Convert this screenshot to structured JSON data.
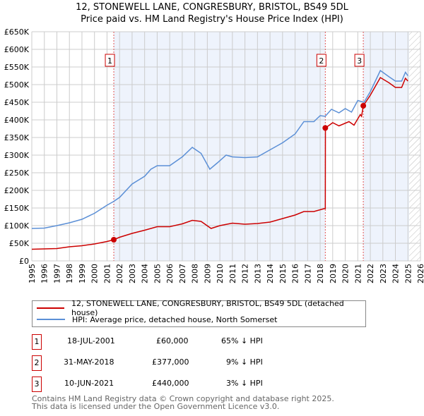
{
  "title": "12, STONEWELL LANE, CONGRESBURY, BRISTOL, BS49 5DL",
  "subtitle": "Price paid vs. HM Land Registry's House Price Index (HPI)",
  "chart_data": {
    "type": "line",
    "xlim": [
      1995,
      2026
    ],
    "ylim": [
      0,
      650000
    ],
    "x_ticks": [
      "1995",
      "1996",
      "1997",
      "1998",
      "1999",
      "2000",
      "2001",
      "2002",
      "2003",
      "2004",
      "2005",
      "2006",
      "2007",
      "2008",
      "2009",
      "2010",
      "2011",
      "2012",
      "2013",
      "2014",
      "2015",
      "2016",
      "2017",
      "2018",
      "2019",
      "2020",
      "2021",
      "2022",
      "2023",
      "2024",
      "2025",
      "2026"
    ],
    "y_ticks": [
      {
        "v": 0,
        "l": "£0"
      },
      {
        "v": 50000,
        "l": "£50K"
      },
      {
        "v": 100000,
        "l": "£100K"
      },
      {
        "v": 150000,
        "l": "£150K"
      },
      {
        "v": 200000,
        "l": "£200K"
      },
      {
        "v": 250000,
        "l": "£250K"
      },
      {
        "v": 300000,
        "l": "£300K"
      },
      {
        "v": 350000,
        "l": "£350K"
      },
      {
        "v": 400000,
        "l": "£400K"
      },
      {
        "v": 450000,
        "l": "£450K"
      },
      {
        "v": 500000,
        "l": "£500K"
      },
      {
        "v": 550000,
        "l": "£550K"
      },
      {
        "v": 600000,
        "l": "£600K"
      },
      {
        "v": 650000,
        "l": "£650K"
      }
    ],
    "series": [
      {
        "name": "12, STONEWELL LANE, CONGRESBURY, BRISTOL, BS49 5DL (detached house)",
        "color": "#cc0000",
        "x": [
          1995,
          1997,
          1998,
          1999,
          2000,
          2001,
          2001.54,
          2002,
          2003,
          2004,
          2005,
          2006,
          2007,
          2007.8,
          2008.5,
          2009.3,
          2010,
          2011,
          2012,
          2013,
          2014,
          2015,
          2016,
          2016.7,
          2017.5,
          2018.3,
          2018.41,
          2018.42,
          2019,
          2019.5,
          2020.3,
          2020.7,
          2021.2,
          2021.3,
          2021.44,
          2022,
          2022.8,
          2023.5,
          2024,
          2024.5,
          2024.8,
          2025
        ],
        "y": [
          33000,
          35000,
          40000,
          43000,
          48000,
          55000,
          60000,
          67000,
          78000,
          87000,
          97000,
          97000,
          105000,
          115000,
          112000,
          92000,
          100000,
          107000,
          104000,
          106000,
          110000,
          120000,
          130000,
          140000,
          140000,
          148000,
          148000,
          377000,
          392000,
          383000,
          395000,
          385000,
          415000,
          410000,
          440000,
          470000,
          520000,
          505000,
          492000,
          492000,
          518000,
          510000
        ]
      },
      {
        "name": "HPI: Average price, detached house, North Somerset",
        "color": "#5b8fd6",
        "x": [
          1995,
          1996,
          1997,
          1998,
          1999,
          2000,
          2001,
          2001.5,
          2002,
          2003,
          2004,
          2004.5,
          2005,
          2006,
          2007,
          2007.8,
          2008.5,
          2009.2,
          2009.8,
          2010.5,
          2011,
          2012,
          2013,
          2014,
          2015,
          2016,
          2016.7,
          2017.5,
          2018,
          2018.4,
          2018.9,
          2019.5,
          2020,
          2020.5,
          2021,
          2021.5,
          2022,
          2022.8,
          2023.5,
          2024,
          2024.5,
          2024.8,
          2025
        ],
        "y": [
          92000,
          93000,
          100000,
          108000,
          118000,
          135000,
          158000,
          168000,
          180000,
          218000,
          240000,
          260000,
          270000,
          270000,
          295000,
          322000,
          305000,
          260000,
          278000,
          300000,
          295000,
          293000,
          295000,
          315000,
          335000,
          360000,
          395000,
          395000,
          412000,
          410000,
          430000,
          420000,
          432000,
          422000,
          455000,
          450000,
          480000,
          540000,
          522000,
          510000,
          510000,
          535000,
          525000
        ]
      }
    ],
    "sales": [
      {
        "n": "1",
        "x": 2001.54,
        "y": 60000
      },
      {
        "n": "2",
        "x": 2018.41,
        "y": 377000
      },
      {
        "n": "3",
        "x": 2021.44,
        "y": 440000
      }
    ],
    "shaded": [
      [
        2001.54,
        2018.41
      ],
      [
        2021.44,
        2025.1
      ]
    ],
    "forecast_start": 2025.1,
    "legend_position": "below"
  },
  "legend": {
    "red": "12, STONEWELL LANE, CONGRESBURY, BRISTOL, BS49 5DL (detached house)",
    "blue": "HPI: Average price, detached house, North Somerset"
  },
  "rows": [
    {
      "n": "1",
      "date": "18-JUL-2001",
      "price": "£60,000",
      "hpi": "65% ↓ HPI"
    },
    {
      "n": "2",
      "date": "31-MAY-2018",
      "price": "£377,000",
      "hpi": "9% ↓ HPI"
    },
    {
      "n": "3",
      "date": "10-JUN-2021",
      "price": "£440,000",
      "hpi": "3% ↓ HPI"
    }
  ],
  "footer": {
    "line1": "Contains HM Land Registry data © Crown copyright and database right 2025.",
    "line2": "This data is licensed under the Open Government Licence v3.0."
  }
}
